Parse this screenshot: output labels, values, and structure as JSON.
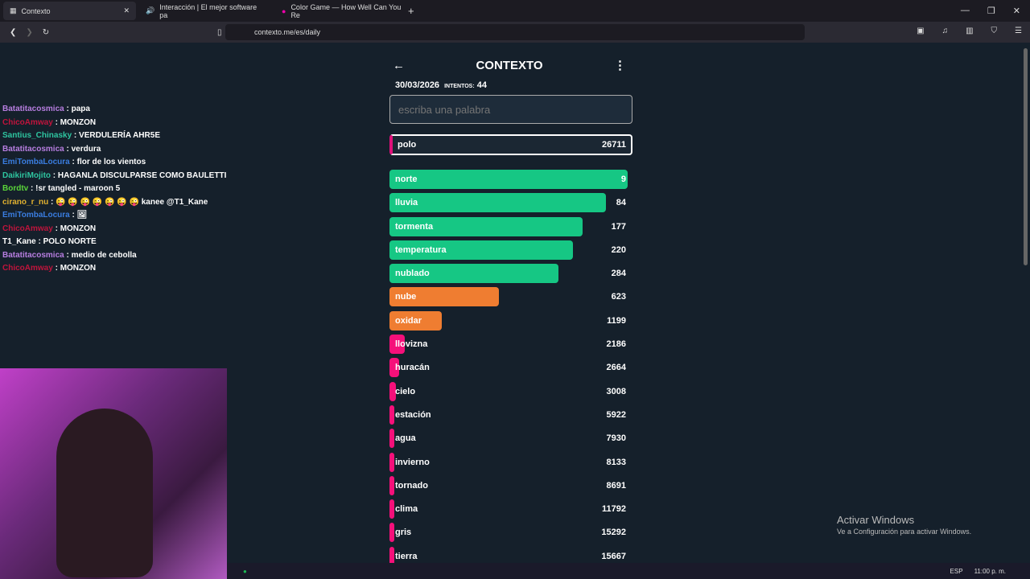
{
  "browser": {
    "tabs": [
      {
        "title": "Contexto",
        "active": true
      },
      {
        "title": "Interacción | El mejor software pa"
      },
      {
        "title": "Color Game — How Well Can You Re"
      }
    ],
    "url": "contexto.me/es/daily"
  },
  "chat": [
    {
      "user": "Batatitacosmica",
      "color": "#b77ee0",
      "msg": "papa"
    },
    {
      "user": "ChicoAmway",
      "color": "#c0143c",
      "msg": "MONZON"
    },
    {
      "user": "Santius_Chinasky",
      "color": "#2ec5a0",
      "msg": "VERDULERÍA AHR5E"
    },
    {
      "user": "Batatitacosmica",
      "color": "#b77ee0",
      "msg": "verdura"
    },
    {
      "user": "EmiTombaLocura",
      "color": "#3a7de0",
      "msg": "flor de los vientos"
    },
    {
      "user": "DaikiriMojito",
      "color": "#2ec5a0",
      "msg": "HAGANLA DISCULPARSE COMO BAULETTI"
    },
    {
      "user": "Bordtv",
      "color": "#5ad43a",
      "msg": "!sr tangled - maroon 5"
    },
    {
      "user": "cirano_r_nu",
      "color": "#e0b030",
      "msg": "😜 😜 😜 😜 😜 😜 😜 kanee @T1_Kane"
    },
    {
      "user": "EmiTombaLocura",
      "color": "#3a7de0",
      "msg": "🖼"
    },
    {
      "user": "ChicoAmway",
      "color": "#c0143c",
      "msg": "MONZON"
    },
    {
      "user": "T1_Kane",
      "color": "#ffffff",
      "msg": "POLO NORTE"
    },
    {
      "user": "Batatitacosmica",
      "color": "#b77ee0",
      "msg": "medio de cebolla"
    },
    {
      "user": "ChicoAmway",
      "color": "#c0143c",
      "msg": "MONZON"
    }
  ],
  "game": {
    "title": "CONTEXTO",
    "date": "30/03/2026",
    "attempts_label": "INTENTOS:",
    "attempts": "44",
    "placeholder": "escriba una palabra",
    "current": {
      "word": "polo",
      "rank": "26711"
    },
    "colors": {
      "green": "#16c784",
      "orange": "#ef7d31",
      "pink": "#f5107a"
    },
    "guesses": [
      {
        "word": "norte",
        "rank": "9",
        "fill": 1.0,
        "c": "green"
      },
      {
        "word": "lluvia",
        "rank": "84",
        "fill": 0.91,
        "c": "green"
      },
      {
        "word": "tormenta",
        "rank": "177",
        "fill": 0.81,
        "c": "green"
      },
      {
        "word": "temperatura",
        "rank": "220",
        "fill": 0.77,
        "c": "green"
      },
      {
        "word": "nublado",
        "rank": "284",
        "fill": 0.71,
        "c": "green"
      },
      {
        "word": "nube",
        "rank": "623",
        "fill": 0.46,
        "c": "orange"
      },
      {
        "word": "oxidar",
        "rank": "1199",
        "fill": 0.22,
        "c": "orange"
      },
      {
        "word": "llovizna",
        "rank": "2186",
        "fill": 0.065,
        "c": "pink"
      },
      {
        "word": "huracán",
        "rank": "2664",
        "fill": 0.04,
        "c": "pink"
      },
      {
        "word": "cielo",
        "rank": "3008",
        "fill": 0.027,
        "c": "pink"
      },
      {
        "word": "estación",
        "rank": "5922",
        "fill": 0.015,
        "c": "pink"
      },
      {
        "word": "agua",
        "rank": "7930",
        "fill": 0.015,
        "c": "pink"
      },
      {
        "word": "invierno",
        "rank": "8133",
        "fill": 0.015,
        "c": "pink"
      },
      {
        "word": "tornado",
        "rank": "8691",
        "fill": 0.015,
        "c": "pink"
      },
      {
        "word": "clima",
        "rank": "11792",
        "fill": 0.015,
        "c": "pink"
      },
      {
        "word": "gris",
        "rank": "15292",
        "fill": 0.015,
        "c": "pink"
      },
      {
        "word": "tierra",
        "rank": "15667",
        "fill": 0.015,
        "c": "pink"
      }
    ]
  },
  "windows": {
    "activate_title": "Activar Windows",
    "activate_sub": "Ve a Configuración para activar Windows.",
    "lang": "ESP",
    "time": "11:00 p. m."
  }
}
